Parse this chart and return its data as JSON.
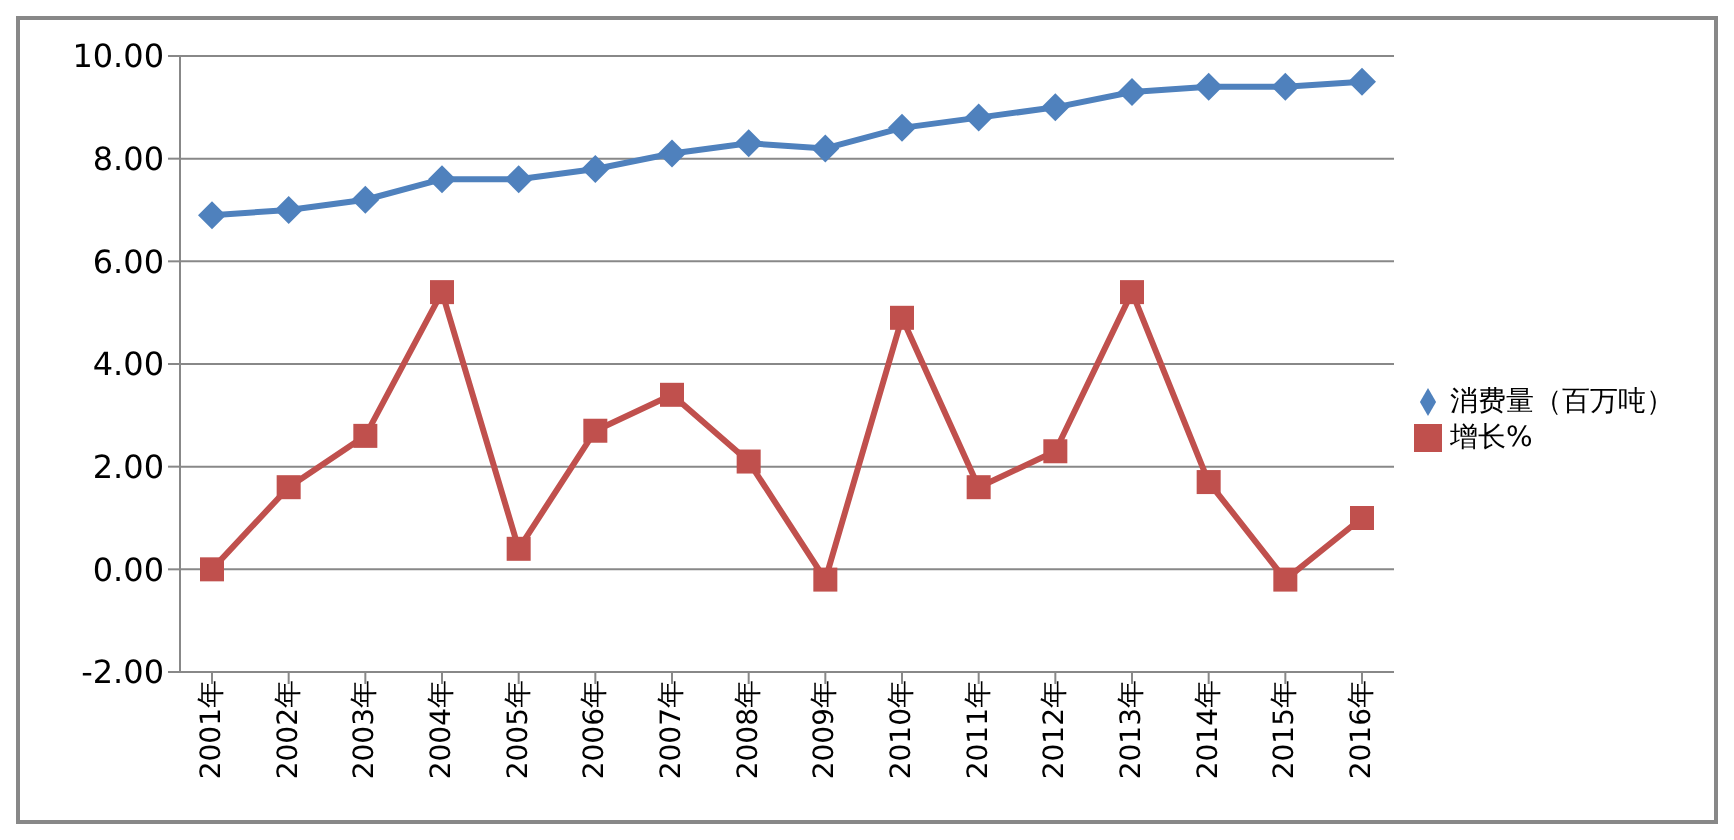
{
  "chart_data": {
    "type": "line",
    "categories": [
      "2001年",
      "2002年",
      "2003年",
      "2004年",
      "2005年",
      "2006年",
      "2007年",
      "2008年",
      "2009年",
      "2010年",
      "2011年",
      "2012年",
      "2013年",
      "2014年",
      "2015年",
      "2016年"
    ],
    "series": [
      {
        "name": "消费量（百万吨）",
        "color": "#4f81bd",
        "marker": "diamond",
        "values": [
          6.9,
          7.0,
          7.2,
          7.6,
          7.6,
          7.8,
          8.1,
          8.3,
          8.2,
          8.6,
          8.8,
          9.0,
          9.3,
          9.4,
          9.4,
          9.5
        ]
      },
      {
        "name": "增长%",
        "color": "#c0504d",
        "marker": "square",
        "values": [
          0,
          1.6,
          2.6,
          5.4,
          0.4,
          2.7,
          3.4,
          2.1,
          -0.2,
          4.9,
          1.6,
          2.3,
          5.4,
          1.7,
          -0.2,
          1.0
        ]
      }
    ],
    "ylim": [
      -2,
      10
    ],
    "yticks": [
      {
        "value": -2,
        "label": "-2.00"
      },
      {
        "value": 0,
        "label": "0.00"
      },
      {
        "value": 2,
        "label": "2.00"
      },
      {
        "value": 4,
        "label": "4.00"
      },
      {
        "value": 6,
        "label": "6.00"
      },
      {
        "value": 8,
        "label": "8.00"
      },
      {
        "value": 10,
        "label": "10.00"
      }
    ],
    "grid": "y",
    "legend": "right"
  }
}
